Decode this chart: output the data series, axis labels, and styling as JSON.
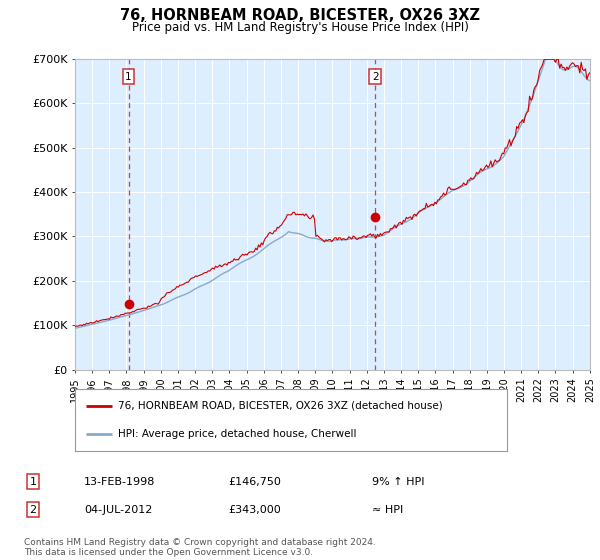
{
  "title1": "76, HORNBEAM ROAD, BICESTER, OX26 3XZ",
  "title2": "Price paid vs. HM Land Registry's House Price Index (HPI)",
  "red_label": "76, HORNBEAM ROAD, BICESTER, OX26 3XZ (detached house)",
  "blue_label": "HPI: Average price, detached house, Cherwell",
  "annotation1_date": "13-FEB-1998",
  "annotation1_price": "£146,750",
  "annotation1_hpi": "9% ↑ HPI",
  "annotation2_date": "04-JUL-2012",
  "annotation2_price": "£343,000",
  "annotation2_hpi": "≈ HPI",
  "footer": "Contains HM Land Registry data © Crown copyright and database right 2024.\nThis data is licensed under the Open Government Licence v3.0.",
  "x_start_year": 1995,
  "x_end_year": 2025,
  "ylim": [
    0,
    700000
  ],
  "yticks": [
    0,
    100000,
    200000,
    300000,
    400000,
    500000,
    600000,
    700000
  ],
  "ytick_labels": [
    "£0",
    "£100K",
    "£200K",
    "£300K",
    "£400K",
    "£500K",
    "£600K",
    "£700K"
  ],
  "background_color": "#ffffff",
  "plot_bg_color": "#ddeeff",
  "grid_color": "#ccddee",
  "red_color": "#cc0000",
  "blue_color": "#88aacc",
  "dashed_color": "#cc4444",
  "sale1_year": 1998.12,
  "sale1_price": 146750,
  "sale2_year": 2012.5,
  "sale2_price": 343000
}
